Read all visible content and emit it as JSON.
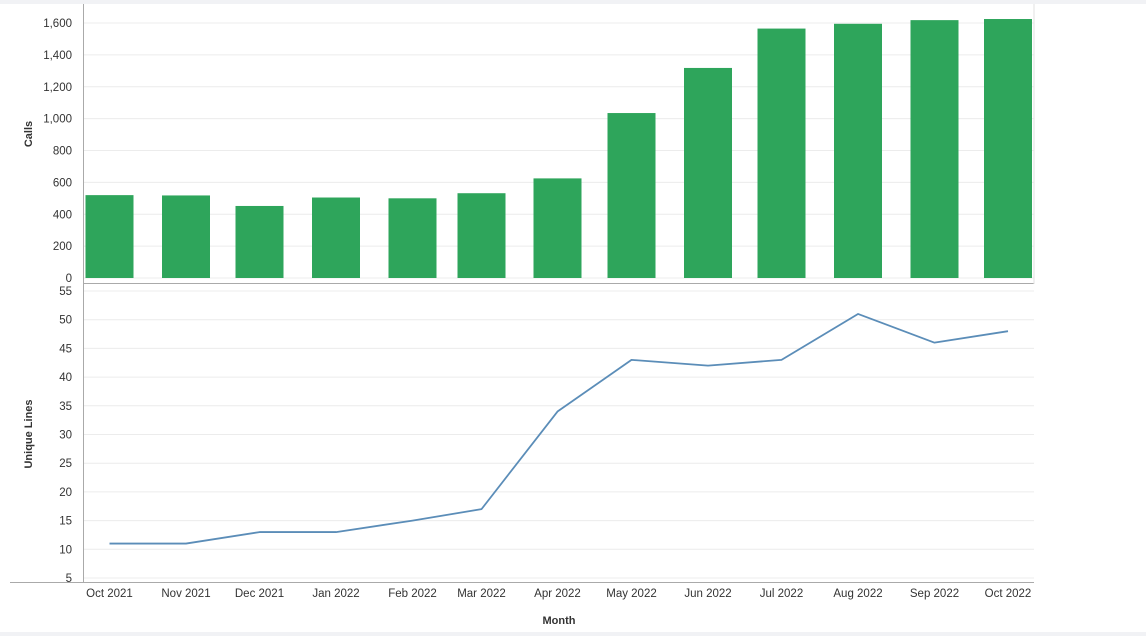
{
  "chart_data": [
    {
      "type": "bar",
      "categories": [
        "Oct 2021",
        "Nov 2021",
        "Dec 2021",
        "Jan 2022",
        "Feb 2022",
        "Mar 2022",
        "Apr 2022",
        "May 2022",
        "Jun 2022",
        "Jul 2022",
        "Aug 2022",
        "Sep 2022",
        "Oct 2022"
      ],
      "values": [
        520,
        518,
        452,
        505,
        500,
        532,
        625,
        1035,
        1318,
        1565,
        1595,
        1618,
        1625
      ],
      "ylabel": "Calls",
      "ylim": [
        0,
        1600
      ],
      "yticks": [
        "0",
        "200",
        "400",
        "600",
        "800",
        "1,000",
        "1,200",
        "1,400",
        "1,600"
      ],
      "color": "#2ea55b",
      "grid": true
    },
    {
      "type": "line",
      "categories": [
        "Oct 2021",
        "Nov 2021",
        "Dec 2021",
        "Jan 2022",
        "Feb 2022",
        "Mar 2022",
        "Apr 2022",
        "May 2022",
        "Jun 2022",
        "Jul 2022",
        "Aug 2022",
        "Sep 2022",
        "Oct 2022"
      ],
      "values": [
        11,
        11,
        13,
        13,
        15,
        17,
        34,
        43,
        42,
        43,
        51,
        46,
        48
      ],
      "xlabel": "Month",
      "ylabel": "Unique Lines",
      "ylim": [
        5,
        55
      ],
      "yticks": [
        "5",
        "10",
        "15",
        "20",
        "25",
        "30",
        "35",
        "40",
        "45",
        "50",
        "55"
      ],
      "color": "#5b8db8",
      "grid": true
    }
  ]
}
